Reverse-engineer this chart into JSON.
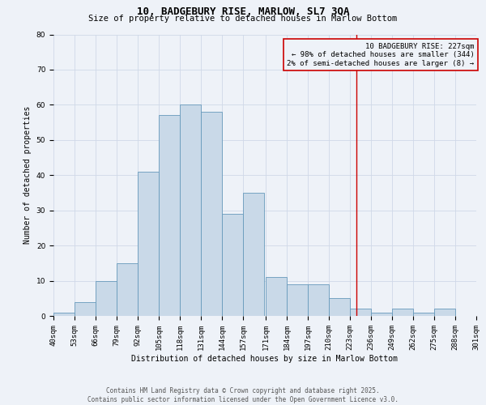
{
  "title1": "10, BADGEBURY RISE, MARLOW, SL7 3QA",
  "title2": "Size of property relative to detached houses in Marlow Bottom",
  "xlabel": "Distribution of detached houses by size in Marlow Bottom",
  "ylabel": "Number of detached properties",
  "bin_labels": [
    "40sqm",
    "53sqm",
    "66sqm",
    "79sqm",
    "92sqm",
    "105sqm",
    "118sqm",
    "131sqm",
    "144sqm",
    "157sqm",
    "171sqm",
    "184sqm",
    "197sqm",
    "210sqm",
    "223sqm",
    "236sqm",
    "249sqm",
    "262sqm",
    "275sqm",
    "288sqm",
    "301sqm"
  ],
  "bin_edges": [
    40,
    53,
    66,
    79,
    92,
    105,
    118,
    131,
    144,
    157,
    171,
    184,
    197,
    210,
    223,
    236,
    249,
    262,
    275,
    288,
    301
  ],
  "values": [
    1,
    4,
    10,
    15,
    41,
    57,
    60,
    58,
    29,
    35,
    11,
    9,
    9,
    5,
    2,
    1,
    2,
    1,
    2,
    0
  ],
  "bar_facecolor": "#c9d9e8",
  "bar_edgecolor": "#6699bb",
  "grid_color": "#d0d8e8",
  "bg_color": "#eef2f8",
  "red_line_x": 227,
  "annotation_text": "10 BADGEBURY RISE: 227sqm\n← 98% of detached houses are smaller (344)\n2% of semi-detached houses are larger (8) →",
  "annotation_box_color": "#cc0000",
  "footer1": "Contains HM Land Registry data © Crown copyright and database right 2025.",
  "footer2": "Contains public sector information licensed under the Open Government Licence v3.0.",
  "ylim": [
    0,
    80
  ],
  "title_fontsize": 9,
  "subtitle_fontsize": 7.5,
  "axis_fontsize": 7,
  "tick_fontsize": 6.5,
  "annot_fontsize": 6.5,
  "footer_fontsize": 5.5
}
